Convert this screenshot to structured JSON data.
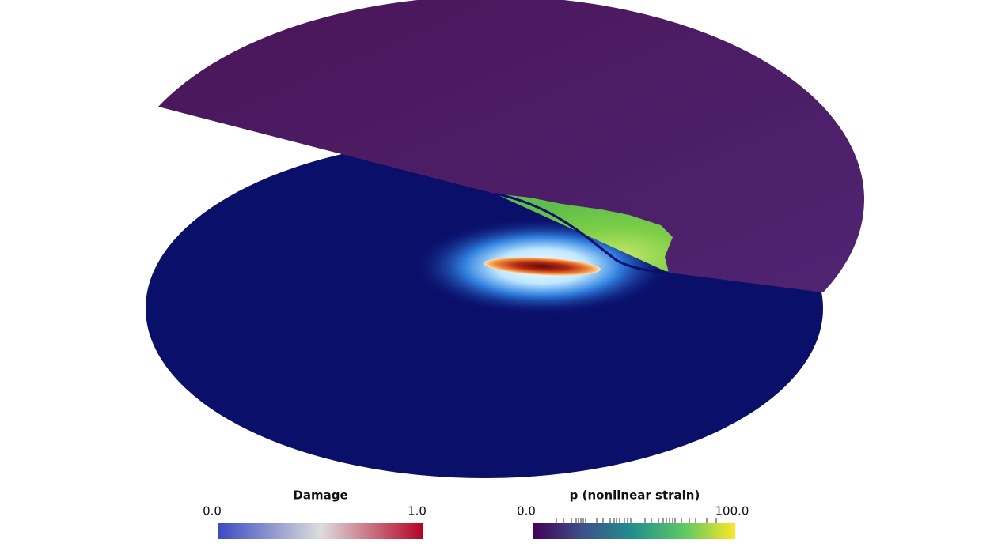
{
  "legends": [
    {
      "title": "Damage",
      "range": [
        {
          "value": 0,
          "label": "0.0"
        },
        {
          "value": 1,
          "label": "1.0"
        }
      ]
    },
    {
      "title": "p (nonlinear strain)",
      "range": [
        {
          "value": 0,
          "label": "0.0"
        },
        {
          "value": 100,
          "label": "100.0"
        }
      ]
    }
  ]
}
